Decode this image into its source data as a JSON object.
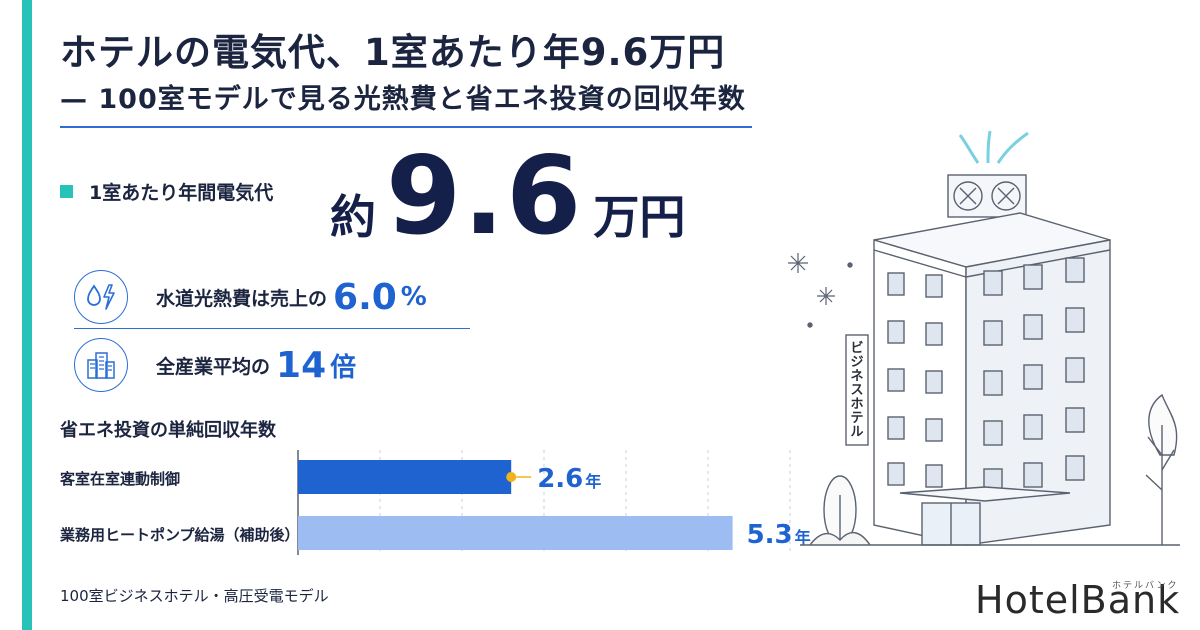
{
  "header": {
    "title": "ホテルの電気代、1室あたり年9.6万円",
    "subtitle": "— 100室モデルで見る光熱費と省エネ投資の回収年数"
  },
  "kpi": {
    "label": "1室あたり年間電気代",
    "prefix": "約",
    "number": "9.6",
    "unit": "万円"
  },
  "stats": [
    {
      "icon": "water-electricity-icon",
      "text": "水道光熱費は売上の",
      "number": "6.0",
      "unit": "%"
    },
    {
      "icon": "buildings-icon",
      "text": "全産業平均の",
      "number": "14",
      "unit": "倍"
    }
  ],
  "chart_data": {
    "type": "bar",
    "orientation": "horizontal",
    "title": "省エネ投資の単純回収年数",
    "categories": [
      "客室在室連動制御",
      "業務用ヒートポンプ給湯（補助後）"
    ],
    "values": [
      2.6,
      5.3
    ],
    "value_labels": [
      "2.6",
      "5.3"
    ],
    "unit": "年",
    "xlim": [
      0,
      6
    ],
    "grid": true,
    "colors": [
      "#1e63d0",
      "#9dbcf2"
    ]
  },
  "footnote": "100室ビジネスホテル・高圧受電モデル",
  "illustration": {
    "sign_text": "ビジネスホテル"
  },
  "brand": {
    "logo": "HotelBank",
    "logo_kana": "ホテルバンク"
  },
  "colors": {
    "accent": "#27c2b8",
    "primary": "#1e63d0",
    "navy": "#141f4a",
    "bar_light": "#9dbcf2"
  }
}
